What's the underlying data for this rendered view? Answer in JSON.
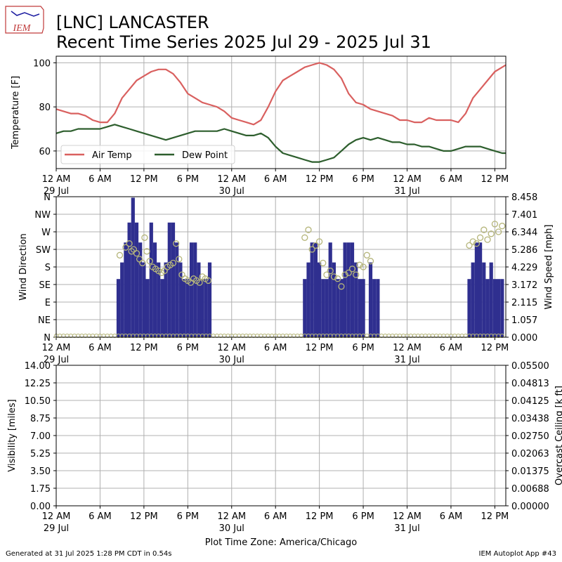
{
  "header": {
    "logo_text": "IEM",
    "title_line1": "[LNC] LANCASTER",
    "title_line2": "Recent Time Series 2025 Jul 29 - 2025 Jul 31"
  },
  "footer": {
    "generated": "Generated at 31 Jul 2025 1:28 PM CDT in 0.54s",
    "app": "IEM Autoplot App #43"
  },
  "x_axis": {
    "tick_labels": [
      "12 AM",
      "6 AM",
      "12 PM",
      "6 PM",
      "12 AM",
      "6 AM",
      "12 PM",
      "6 PM",
      "12 AM",
      "6 AM",
      "12 PM"
    ],
    "date_labels": [
      "29 Jul",
      "30 Jul",
      "31 Jul"
    ],
    "timezone_label": "Plot Time Zone: America/Chicago"
  },
  "colors": {
    "air_temp": "#d9605f",
    "dew_point": "#2d5e2d",
    "wind_speed_bar": "#2f2f8f",
    "wind_direction_marker": "#b5b57a",
    "ceiling_axis": "#228b22",
    "grid": "#b0b0b0"
  },
  "chart_data": [
    {
      "type": "line",
      "ylabel": "Temperature [F]",
      "yticks": [
        "60",
        "80",
        "100"
      ],
      "ylim": [
        52,
        103
      ],
      "xlim_hours": [
        0,
        61.5
      ],
      "legend": "bottom-left",
      "series": [
        {
          "name": "Air Temp",
          "x_hours": [
            0,
            1,
            2,
            3,
            4,
            5,
            6,
            7,
            8,
            9,
            10,
            11,
            12,
            13,
            14,
            15,
            16,
            17,
            18,
            19,
            20,
            21,
            22,
            23,
            24,
            25,
            26,
            27,
            28,
            29,
            30,
            31,
            32,
            33,
            34,
            35,
            36,
            37,
            38,
            39,
            40,
            41,
            42,
            43,
            44,
            45,
            46,
            47,
            48,
            49,
            50,
            51,
            52,
            53,
            54,
            55,
            56,
            57,
            58,
            59,
            60,
            61,
            61.5
          ],
          "values": [
            79,
            78,
            77,
            77,
            76,
            74,
            73,
            73,
            77,
            84,
            88,
            92,
            94,
            96,
            97,
            97,
            95,
            91,
            86,
            84,
            82,
            81,
            80,
            78,
            75,
            74,
            73,
            72,
            74,
            80,
            87,
            92,
            94,
            96,
            98,
            99,
            100,
            99,
            97,
            93,
            86,
            82,
            81,
            79,
            78,
            77,
            76,
            74,
            74,
            73,
            73,
            75,
            74,
            74,
            74,
            73,
            77,
            84,
            88,
            92,
            96,
            98,
            99
          ]
        },
        {
          "name": "Dew Point",
          "x_hours": [
            0,
            1,
            2,
            3,
            4,
            5,
            6,
            7,
            8,
            9,
            10,
            11,
            12,
            13,
            14,
            15,
            16,
            17,
            18,
            19,
            20,
            21,
            22,
            23,
            24,
            25,
            26,
            27,
            28,
            29,
            30,
            31,
            32,
            33,
            34,
            35,
            36,
            37,
            38,
            39,
            40,
            41,
            42,
            43,
            44,
            45,
            46,
            47,
            48,
            49,
            50,
            51,
            52,
            53,
            54,
            55,
            56,
            57,
            58,
            59,
            60,
            61,
            61.5
          ],
          "values": [
            68,
            69,
            69,
            70,
            70,
            70,
            70,
            71,
            72,
            71,
            70,
            69,
            68,
            67,
            66,
            65,
            66,
            67,
            68,
            69,
            69,
            69,
            69,
            70,
            69,
            68,
            67,
            67,
            68,
            66,
            62,
            59,
            58,
            57,
            56,
            55,
            55,
            56,
            57,
            60,
            63,
            65,
            66,
            65,
            66,
            65,
            64,
            64,
            63,
            63,
            62,
            62,
            61,
            60,
            60,
            61,
            62,
            62,
            62,
            61,
            60,
            59,
            59
          ]
        }
      ]
    },
    {
      "type": "bar",
      "ylabel": "Wind Direction",
      "y2label": "Wind Speed [mph]",
      "yticks": [
        "N",
        "NE",
        "E",
        "SE",
        "S",
        "SW",
        "W",
        "NW",
        "N"
      ],
      "ylim": [
        0,
        360
      ],
      "y2ticks": [
        "0.000",
        "1.057",
        "2.115",
        "3.172",
        "4.229",
        "5.286",
        "6.344",
        "7.401",
        "8.458"
      ],
      "y2lim": [
        0,
        8.458
      ],
      "xlim_hours": [
        0,
        61.5
      ],
      "series": [
        {
          "name": "Wind Speed",
          "x_hours": [
            8.5,
            9.0,
            9.5,
            10.0,
            10.5,
            11.0,
            11.5,
            12.0,
            12.5,
            13.0,
            13.5,
            14.0,
            14.5,
            15.0,
            15.5,
            16.0,
            16.5,
            17.0,
            17.5,
            18.0,
            18.5,
            19.0,
            19.5,
            20.0,
            20.5,
            21.0,
            34.0,
            34.5,
            35.0,
            35.5,
            36.0,
            36.5,
            37.0,
            37.5,
            38.0,
            38.5,
            39.0,
            39.5,
            40.0,
            40.5,
            41.0,
            41.5,
            42.0,
            43.0,
            43.5,
            44.0,
            56.5,
            57.0,
            57.5,
            58.0,
            58.5,
            59.0,
            59.5,
            60.0,
            60.5,
            61.0
          ],
          "values": [
            3.5,
            4.5,
            5.7,
            6.9,
            8.4,
            6.9,
            5.7,
            4.5,
            3.5,
            6.9,
            5.7,
            4.5,
            3.5,
            4.5,
            6.9,
            6.9,
            5.7,
            4.5,
            3.5,
            3.5,
            5.7,
            5.7,
            4.5,
            3.5,
            3.5,
            4.5,
            3.5,
            4.5,
            5.7,
            5.7,
            4.5,
            3.5,
            3.5,
            5.7,
            4.5,
            3.5,
            3.5,
            5.7,
            5.7,
            5.7,
            4.5,
            3.5,
            3.5,
            4.5,
            3.5,
            3.5,
            3.5,
            4.5,
            5.7,
            5.7,
            4.5,
            3.5,
            4.5,
            3.5,
            3.5,
            3.5
          ]
        },
        {
          "name": "Wind Direction",
          "x_hours": [
            8.7,
            9.5,
            10.0,
            10.3,
            10.6,
            11.0,
            11.4,
            11.8,
            12.1,
            12.4,
            12.8,
            13.2,
            13.6,
            14.0,
            14.4,
            14.8,
            15.2,
            15.6,
            16.0,
            16.4,
            16.8,
            17.2,
            17.6,
            18.0,
            18.4,
            18.8,
            19.2,
            19.6,
            20.0,
            20.4,
            20.8,
            34.0,
            34.5,
            35.0,
            35.5,
            36.0,
            36.5,
            37.0,
            37.5,
            38.0,
            38.5,
            39.0,
            39.5,
            40.0,
            40.5,
            41.0,
            41.5,
            42.0,
            42.5,
            43.0,
            56.5,
            57.0,
            57.5,
            58.0,
            58.5,
            59.0,
            59.5,
            60.0,
            60.5,
            61.0
          ],
          "values": [
            210,
            230,
            240,
            220,
            225,
            215,
            200,
            190,
            255,
            220,
            195,
            180,
            175,
            170,
            165,
            170,
            180,
            185,
            190,
            240,
            200,
            160,
            150,
            145,
            140,
            150,
            145,
            140,
            155,
            150,
            145,
            255,
            275,
            225,
            235,
            245,
            190,
            160,
            170,
            155,
            150,
            130,
            160,
            165,
            175,
            160,
            185,
            180,
            210,
            195,
            235,
            245,
            240,
            255,
            275,
            250,
            265,
            290,
            270,
            285
          ]
        }
      ]
    },
    {
      "type": "line",
      "ylabel": "Visibility [miles]",
      "y2label": "Overcast Ceiling [k ft]",
      "yticks": [
        "0.00",
        "1.75",
        "3.50",
        "5.25",
        "7.00",
        "8.75",
        "10.50",
        "12.25",
        "14.00"
      ],
      "ylim": [
        0,
        14
      ],
      "y2ticks": [
        "0.00000",
        "0.00688",
        "0.01375",
        "0.02063",
        "0.02750",
        "0.03438",
        "0.04125",
        "0.04813",
        "0.05500"
      ],
      "y2lim": [
        0,
        0.055
      ],
      "xlim_hours": [
        0,
        61.5
      ],
      "series": []
    }
  ]
}
